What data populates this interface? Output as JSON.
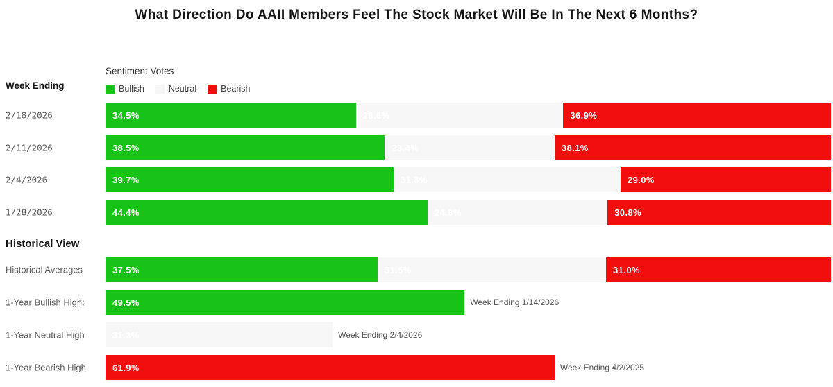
{
  "title": "What Direction Do AAII Members Feel The Stock Market Will Be In The Next 6 Months?",
  "legend": {
    "title": "Sentiment Votes",
    "items": [
      {
        "label": "Bullish",
        "series": "bullish"
      },
      {
        "label": "Neutral",
        "series": "neutral"
      },
      {
        "label": "Bearish",
        "series": "bearish"
      }
    ]
  },
  "colors": {
    "bullish": "#17c317",
    "neutral": "#f7f7f7",
    "bearish": "#f30e0e"
  },
  "section_labels": {
    "week_ending": "Week Ending",
    "historical_view": "Historical View"
  },
  "chart_data": {
    "type": "bar",
    "orientation": "horizontal",
    "stacked": true,
    "unit": "%",
    "xlim": [
      0,
      100
    ],
    "series": [
      "Bullish",
      "Neutral",
      "Bearish"
    ],
    "weekly_rows": [
      {
        "label": "2/18/2026",
        "segments": [
          {
            "series": "bullish",
            "value": 34.5
          },
          {
            "series": "neutral",
            "value": 28.6
          },
          {
            "series": "bearish",
            "value": 36.9
          }
        ]
      },
      {
        "label": "2/11/2026",
        "segments": [
          {
            "series": "bullish",
            "value": 38.5
          },
          {
            "series": "neutral",
            "value": 23.4
          },
          {
            "series": "bearish",
            "value": 38.1
          }
        ]
      },
      {
        "label": "2/4/2026",
        "segments": [
          {
            "series": "bullish",
            "value": 39.7
          },
          {
            "series": "neutral",
            "value": 31.3
          },
          {
            "series": "bearish",
            "value": 29.0
          }
        ]
      },
      {
        "label": "1/28/2026",
        "segments": [
          {
            "series": "bullish",
            "value": 44.4
          },
          {
            "series": "neutral",
            "value": 24.8
          },
          {
            "series": "bearish",
            "value": 30.8
          }
        ]
      }
    ],
    "historical_rows": [
      {
        "label": "Historical Averages",
        "segments": [
          {
            "series": "bullish",
            "value": 37.5
          },
          {
            "series": "neutral",
            "value": 31.5
          },
          {
            "series": "bearish",
            "value": 31.0
          }
        ]
      },
      {
        "label": "1-Year Bullish High:",
        "segments": [
          {
            "series": "bullish",
            "value": 49.5
          }
        ],
        "annotation": "Week Ending 1/14/2026"
      },
      {
        "label": "1-Year Neutral High",
        "segments": [
          {
            "series": "neutral",
            "value": 31.3
          }
        ],
        "annotation": "Week Ending 2/4/2026"
      },
      {
        "label": "1-Year Bearish High",
        "segments": [
          {
            "series": "bearish",
            "value": 61.9
          }
        ],
        "annotation": "Week Ending 4/2/2025"
      }
    ]
  }
}
